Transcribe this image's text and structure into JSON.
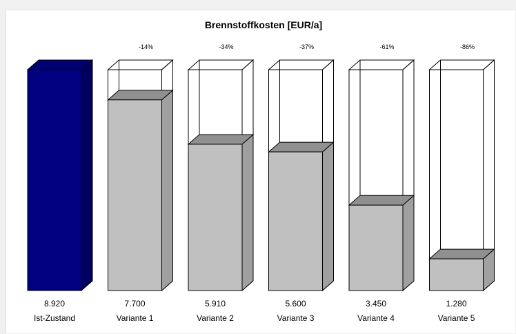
{
  "chart_data": {
    "type": "bar",
    "title": "Brennstoffkosten  [EUR/a]",
    "categories": [
      "Ist-Zustand",
      "Variante 1",
      "Variante 2",
      "Variante 3",
      "Variante 4",
      "Variante 5"
    ],
    "values": [
      8920,
      7700,
      5910,
      5600,
      3450,
      1280
    ],
    "value_labels": [
      "8.920",
      "7.700",
      "5.910",
      "5.600",
      "3.450",
      "1.280"
    ],
    "percent_labels": [
      "",
      "-14%",
      "-34%",
      "-37%",
      "-61%",
      "-86%"
    ],
    "reference_value": 8920,
    "ylim": [
      0,
      8920
    ],
    "grid": false,
    "legend": "none",
    "colors": {
      "baseline_front": "#000080",
      "baseline_side": "#000060",
      "baseline_top": "#000070",
      "variant_front": "#c0c0c0",
      "variant_side": "#a0a0a0",
      "variant_top": "#909090",
      "outline": "#000000"
    }
  }
}
